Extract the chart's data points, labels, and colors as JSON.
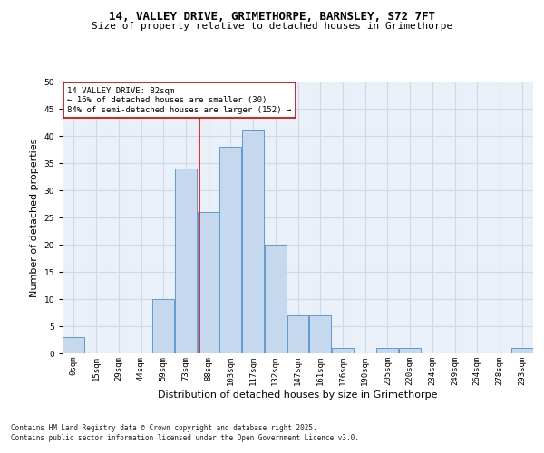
{
  "title1": "14, VALLEY DRIVE, GRIMETHORPE, BARNSLEY, S72 7FT",
  "title2": "Size of property relative to detached houses in Grimethorpe",
  "xlabel": "Distribution of detached houses by size in Grimethorpe",
  "ylabel": "Number of detached properties",
  "bin_labels": [
    "0sqm",
    "15sqm",
    "29sqm",
    "44sqm",
    "59sqm",
    "73sqm",
    "88sqm",
    "103sqm",
    "117sqm",
    "132sqm",
    "147sqm",
    "161sqm",
    "176sqm",
    "190sqm",
    "205sqm",
    "220sqm",
    "234sqm",
    "249sqm",
    "264sqm",
    "278sqm",
    "293sqm"
  ],
  "bar_values": [
    3,
    0,
    0,
    0,
    10,
    34,
    26,
    38,
    41,
    20,
    7,
    7,
    1,
    0,
    1,
    1,
    0,
    0,
    0,
    0,
    1
  ],
  "bar_color": "#c5d8ed",
  "bar_edge_color": "#5b9bd5",
  "grid_color": "#d0d8e8",
  "background_color": "#eaf0f8",
  "red_line_x": 82,
  "bin_edges": [
    0,
    15,
    29,
    44,
    59,
    73,
    88,
    103,
    117,
    132,
    147,
    161,
    176,
    190,
    205,
    220,
    234,
    249,
    264,
    278,
    293,
    308
  ],
  "annotation_line1": "14 VALLEY DRIVE: 82sqm",
  "annotation_line2": "← 16% of detached houses are smaller (30)",
  "annotation_line3": "84% of semi-detached houses are larger (152) →",
  "annotation_box_color": "#ffffff",
  "annotation_box_edge": "#cc0000",
  "ylim": [
    0,
    50
  ],
  "footnote": "Contains HM Land Registry data © Crown copyright and database right 2025.\nContains public sector information licensed under the Open Government Licence v3.0.",
  "title_fontsize": 9,
  "subtitle_fontsize": 8,
  "axis_label_fontsize": 8,
  "tick_fontsize": 6.5,
  "footnote_fontsize": 5.5,
  "annotation_fontsize": 6.5
}
